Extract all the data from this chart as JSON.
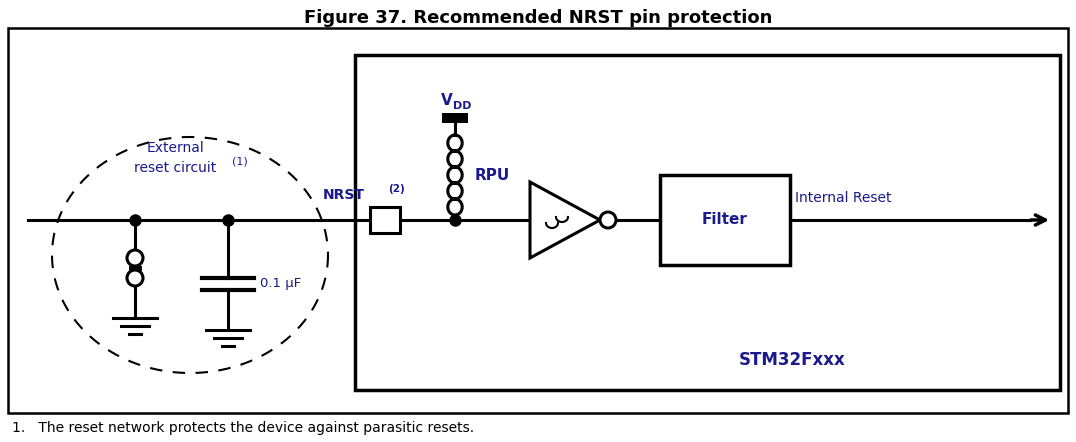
{
  "title": "Figure 37. Recommended NRST pin protection",
  "title_fontsize": 13,
  "footnote": "1.   The reset network protects the device against parasitic resets.",
  "footnote_fontsize": 10,
  "text_color": "#1a1a8c",
  "line_color": "#000000",
  "stm32_label": "STM32Fxxx",
  "filter_label": "Filter",
  "internal_reset_label": "Internal Reset",
  "nrst_label": "NRST",
  "rpu_label": "RPU",
  "vdd_label_main": "V",
  "vdd_label_sub": "DD",
  "capacitor_label": "0.1 μF",
  "external_label_line1": "External",
  "external_label_line2": "reset circuit",
  "external_label_sup": "(1)",
  "nrst_sup": "(2)"
}
